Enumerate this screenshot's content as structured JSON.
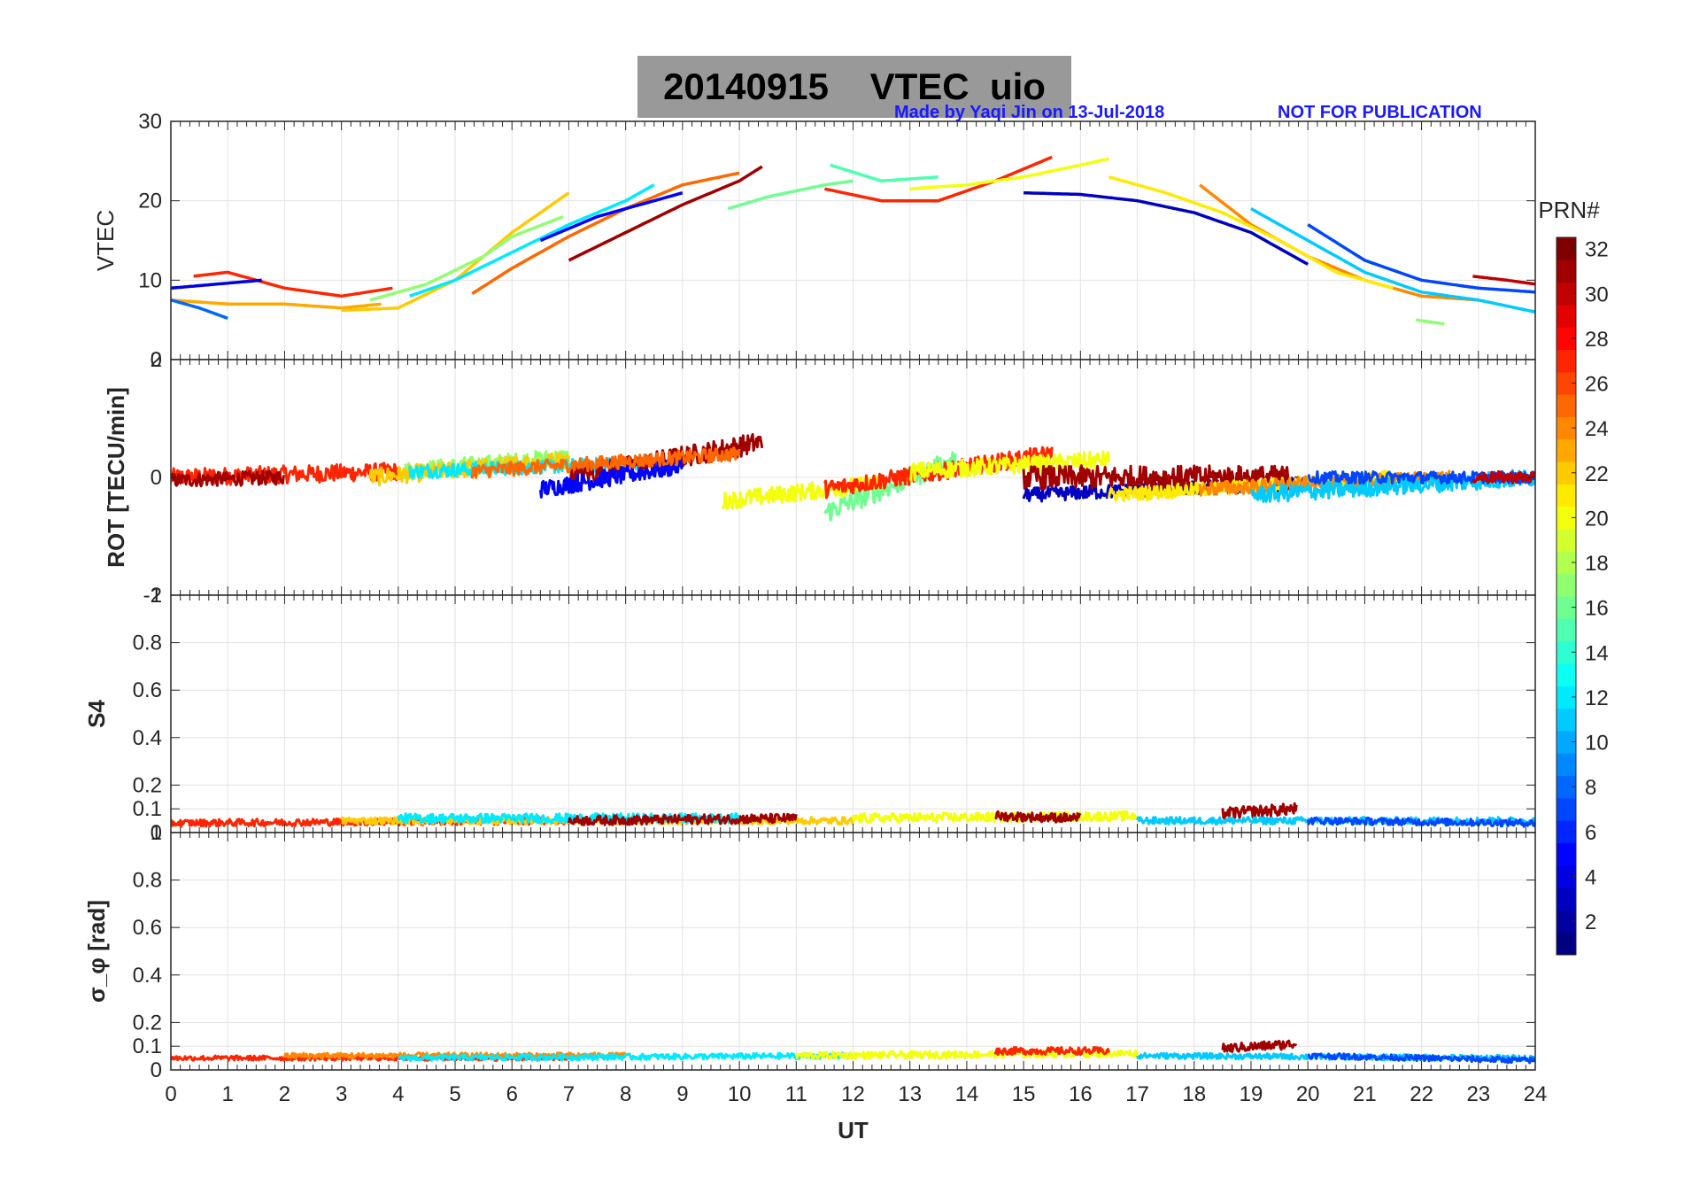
{
  "header": {
    "title": "20140915    VTEC  uio",
    "made_by": "Made by Yaqi Jin on 13-Jul-2018",
    "not_for_publication": "NOT FOR PUBLICATION"
  },
  "colorbar": {
    "label": "PRN#",
    "ticks": [
      "2",
      "4",
      "6",
      "8",
      "10",
      "12",
      "14",
      "16",
      "18",
      "20",
      "22",
      "24",
      "26",
      "28",
      "30",
      "32"
    ],
    "range": [
      1,
      32
    ],
    "colormap": "jet"
  },
  "chart_data": [
    {
      "type": "line",
      "panel": "vtec",
      "ylabel": "VTEC",
      "ylim": [
        0,
        30
      ],
      "yticks": [
        "10",
        "20",
        "30"
      ],
      "ytick_values": [
        10,
        20,
        30
      ],
      "ybottom_label": "0",
      "xlim": [
        0,
        24
      ],
      "series": [
        {
          "name": "PRN 31",
          "prn": 31,
          "x": [
            7.0,
            8.0,
            9.0,
            10.0,
            10.4
          ],
          "y": [
            12.5,
            16.0,
            19.5,
            22.5,
            24.3
          ]
        },
        {
          "name": "PRN 27",
          "prn": 27,
          "x": [
            0.4,
            1.0,
            2.0,
            3.0,
            3.9
          ],
          "y": [
            10.5,
            11.0,
            9.0,
            8.0,
            9.0
          ]
        },
        {
          "name": "PRN 27b",
          "prn": 27,
          "x": [
            11.5,
            12.5,
            13.5,
            14.5,
            15.5
          ],
          "y": [
            21.5,
            20.0,
            20.0,
            22.5,
            25.5
          ]
        },
        {
          "name": "PRN 25",
          "prn": 25,
          "x": [
            5.3,
            6.0,
            7.0,
            8.0,
            9.0,
            10.0
          ],
          "y": [
            8.3,
            11.5,
            15.5,
            19.0,
            22.0,
            23.5
          ]
        },
        {
          "name": "PRN 24",
          "prn": 24,
          "x": [
            18.1,
            19.0,
            20.0,
            21.0,
            22.0,
            23.0
          ],
          "y": [
            22.0,
            17.0,
            13.0,
            10.0,
            8.0,
            7.5
          ]
        },
        {
          "name": "PRN 23",
          "prn": 23,
          "x": [
            0.0,
            1.0,
            2.0,
            3.0,
            3.7
          ],
          "y": [
            7.5,
            7.0,
            7.0,
            6.5,
            7.0
          ]
        },
        {
          "name": "PRN 22",
          "prn": 22,
          "x": [
            3.0,
            4.0,
            5.0,
            6.0,
            7.0
          ],
          "y": [
            6.2,
            6.5,
            10.0,
            16.0,
            21.0
          ]
        },
        {
          "name": "PRN 21",
          "prn": 21,
          "x": [
            16.5,
            17.5,
            18.5,
            19.5,
            20.5,
            21.5
          ],
          "y": [
            23.0,
            21.0,
            18.5,
            15.0,
            11.0,
            9.0
          ]
        },
        {
          "name": "PRN 20",
          "prn": 20,
          "x": [
            13.0,
            14.0,
            15.0,
            16.0,
            16.5
          ],
          "y": [
            21.5,
            22.0,
            23.0,
            24.5,
            25.3
          ]
        },
        {
          "name": "PRN 17",
          "prn": 17,
          "x": [
            3.5,
            4.5,
            5.5,
            6.0,
            6.9
          ],
          "y": [
            7.5,
            9.5,
            13.0,
            15.5,
            18.0
          ]
        },
        {
          "name": "PRN 16",
          "prn": 16,
          "x": [
            9.8,
            10.5,
            11.5,
            12.0
          ],
          "y": [
            19.0,
            20.5,
            22.0,
            22.5
          ]
        },
        {
          "name": "PRN 15",
          "prn": 15,
          "x": [
            11.6,
            12.5,
            13.5
          ],
          "y": [
            24.5,
            22.5,
            23.0
          ]
        },
        {
          "name": "PRN 17b",
          "prn": 17,
          "x": [
            21.9,
            22.4
          ],
          "y": [
            5.0,
            4.5
          ]
        },
        {
          "name": "PRN 12",
          "prn": 12,
          "x": [
            4.2,
            5.0,
            6.0,
            7.0,
            8.0,
            8.5
          ],
          "y": [
            8.0,
            10.0,
            13.5,
            17.0,
            20.0,
            22.0
          ]
        },
        {
          "name": "PRN 11",
          "prn": 11,
          "x": [
            19.0,
            20.0,
            21.0,
            22.0,
            23.0,
            24.0
          ],
          "y": [
            19.0,
            15.0,
            11.0,
            8.5,
            7.5,
            6.0
          ]
        },
        {
          "name": "PRN 8",
          "prn": 8,
          "x": [
            0.0,
            0.5,
            1.0
          ],
          "y": [
            7.5,
            6.5,
            5.2
          ]
        },
        {
          "name": "PRN 7",
          "prn": 7,
          "x": [
            20.0,
            21.0,
            22.0,
            23.0,
            24.0
          ],
          "y": [
            17.0,
            12.5,
            10.0,
            9.0,
            8.5
          ]
        },
        {
          "name": "PRN 5",
          "prn": 5,
          "x": [
            6.5,
            7.5,
            8.5,
            9.0
          ],
          "y": [
            15.0,
            18.0,
            20.0,
            21.0
          ]
        },
        {
          "name": "PRN 4",
          "prn": 4,
          "x": [
            0.0,
            0.8,
            1.6
          ],
          "y": [
            9.0,
            9.5,
            10.0
          ]
        },
        {
          "name": "PRN 3",
          "prn": 3,
          "x": [
            15.0,
            16.0,
            17.0,
            18.0,
            19.0,
            20.0
          ],
          "y": [
            21.0,
            20.8,
            20.0,
            18.5,
            16.0,
            12.0
          ]
        },
        {
          "name": "PRN 30",
          "prn": 30,
          "x": [
            22.9,
            23.5,
            24.0
          ],
          "y": [
            10.5,
            10.0,
            9.5
          ]
        }
      ]
    },
    {
      "type": "line",
      "panel": "rot",
      "ylabel": "ROT [TECU/min]",
      "ylim": [
        -2,
        2
      ],
      "yticks": [
        "-2",
        "0",
        "2"
      ],
      "ytick_values": [
        -2,
        0,
        2
      ],
      "xlim": [
        0,
        24
      ],
      "series": [
        {
          "name": "PRN 27",
          "prn": 27,
          "x": [
            0.0,
            4.0
          ],
          "y": [
            0.0,
            0.1
          ],
          "noise": 0.15
        },
        {
          "name": "PRN 31",
          "prn": 31,
          "x": [
            0.0,
            2.0
          ],
          "y": [
            -0.05,
            0.0
          ],
          "noise": 0.12
        },
        {
          "name": "PRN 17",
          "prn": 17,
          "x": [
            4.0,
            7.0
          ],
          "y": [
            0.1,
            0.35
          ],
          "noise": 0.15
        },
        {
          "name": "PRN 22",
          "prn": 22,
          "x": [
            3.5,
            7.0
          ],
          "y": [
            0.0,
            0.3
          ],
          "noise": 0.15
        },
        {
          "name": "PRN 12",
          "prn": 12,
          "x": [
            4.2,
            8.5
          ],
          "y": [
            0.1,
            0.25
          ],
          "noise": 0.12
        },
        {
          "name": "PRN 31b",
          "prn": 31,
          "x": [
            7.0,
            10.4
          ],
          "y": [
            0.0,
            0.6
          ],
          "noise": 0.18
        },
        {
          "name": "PRN 5",
          "prn": 5,
          "x": [
            6.5,
            9.0
          ],
          "y": [
            -0.2,
            0.2
          ],
          "noise": 0.15
        },
        {
          "name": "PRN 25",
          "prn": 25,
          "x": [
            5.3,
            10.0
          ],
          "y": [
            0.1,
            0.4
          ],
          "noise": 0.12
        },
        {
          "name": "PRN 20",
          "prn": 20,
          "x": [
            9.7,
            12.5
          ],
          "y": [
            -0.4,
            -0.1
          ],
          "noise": 0.15
        },
        {
          "name": "PRN 16",
          "prn": 16,
          "x": [
            11.5,
            13.8
          ],
          "y": [
            -0.6,
            0.3
          ],
          "noise": 0.18
        },
        {
          "name": "PRN 27b",
          "prn": 27,
          "x": [
            11.5,
            15.5
          ],
          "y": [
            -0.2,
            0.4
          ],
          "noise": 0.15
        },
        {
          "name": "PRN 20b",
          "prn": 20,
          "x": [
            13.0,
            16.5
          ],
          "y": [
            0.1,
            0.3
          ],
          "noise": 0.15
        },
        {
          "name": "PRN 3",
          "prn": 3,
          "x": [
            15.0,
            20.0
          ],
          "y": [
            -0.3,
            -0.1
          ],
          "noise": 0.12
        },
        {
          "name": "PRN 31c",
          "prn": 31,
          "x": [
            15.0,
            19.8
          ],
          "y": [
            0.0,
            0.0
          ],
          "noise": 0.2
        },
        {
          "name": "PRN 21",
          "prn": 21,
          "x": [
            16.5,
            21.5
          ],
          "y": [
            -0.3,
            0.0
          ],
          "noise": 0.12
        },
        {
          "name": "PRN 24",
          "prn": 24,
          "x": [
            18.1,
            22.5
          ],
          "y": [
            -0.2,
            0.0
          ],
          "noise": 0.12
        },
        {
          "name": "PRN 11",
          "prn": 11,
          "x": [
            19.0,
            24.0
          ],
          "y": [
            -0.3,
            0.0
          ],
          "noise": 0.15
        },
        {
          "name": "PRN 7",
          "prn": 7,
          "x": [
            20.0,
            24.0
          ],
          "y": [
            0.0,
            0.0
          ],
          "noise": 0.1
        },
        {
          "name": "PRN 30",
          "prn": 30,
          "x": [
            22.9,
            24.0
          ],
          "y": [
            0.0,
            0.0
          ],
          "noise": 0.1
        }
      ]
    },
    {
      "type": "line",
      "panel": "s4",
      "ylabel": "S4",
      "ylim": [
        0,
        1
      ],
      "yticks": [
        "0",
        "0.1",
        "0.2",
        "0.4",
        "0.6",
        "0.8",
        "1"
      ],
      "ytick_values": [
        0,
        0.1,
        0.2,
        0.4,
        0.6,
        0.8,
        1
      ],
      "xlim": [
        0,
        24
      ],
      "series": [
        {
          "name": "PRN 27",
          "prn": 27,
          "x": [
            0.0,
            7.0
          ],
          "y": [
            0.04,
            0.05
          ],
          "noise": 0.015
        },
        {
          "name": "PRN 22",
          "prn": 22,
          "x": [
            3.0,
            12.0
          ],
          "y": [
            0.05,
            0.05
          ],
          "noise": 0.015
        },
        {
          "name": "PRN 12",
          "prn": 12,
          "x": [
            4.0,
            10.0
          ],
          "y": [
            0.06,
            0.06
          ],
          "noise": 0.02
        },
        {
          "name": "PRN 31",
          "prn": 31,
          "x": [
            7.0,
            11.0
          ],
          "y": [
            0.05,
            0.06
          ],
          "noise": 0.02
        },
        {
          "name": "PRN 20",
          "prn": 20,
          "x": [
            12.0,
            17.0
          ],
          "y": [
            0.06,
            0.07
          ],
          "noise": 0.02
        },
        {
          "name": "PRN 31b",
          "prn": 31,
          "x": [
            14.5,
            16.0
          ],
          "y": [
            0.07,
            0.06
          ],
          "noise": 0.02
        },
        {
          "name": "PRN 31c",
          "prn": 31,
          "x": [
            18.5,
            19.8
          ],
          "y": [
            0.08,
            0.1
          ],
          "noise": 0.025
        },
        {
          "name": "PRN 11",
          "prn": 11,
          "x": [
            17.0,
            24.0
          ],
          "y": [
            0.05,
            0.05
          ],
          "noise": 0.015
        },
        {
          "name": "PRN 7",
          "prn": 7,
          "x": [
            20.0,
            24.0
          ],
          "y": [
            0.05,
            0.04
          ],
          "noise": 0.015
        }
      ]
    },
    {
      "type": "line",
      "panel": "sigma_phi",
      "ylabel": "σ_φ [rad]",
      "ylim": [
        0,
        1
      ],
      "yticks": [
        "0",
        "0.1",
        "0.2",
        "0.4",
        "0.6",
        "0.8",
        "1"
      ],
      "ytick_values": [
        0,
        0.1,
        0.2,
        0.4,
        0.6,
        0.8,
        1
      ],
      "xlim": [
        0,
        24
      ],
      "series": [
        {
          "name": "PRN 27",
          "prn": 27,
          "x": [
            0.0,
            7.0
          ],
          "y": [
            0.05,
            0.05
          ],
          "noise": 0.01
        },
        {
          "name": "PRN 24",
          "prn": 24,
          "x": [
            2.0,
            8.0
          ],
          "y": [
            0.06,
            0.06
          ],
          "noise": 0.012
        },
        {
          "name": "PRN 12",
          "prn": 12,
          "x": [
            4.0,
            12.0
          ],
          "y": [
            0.05,
            0.06
          ],
          "noise": 0.012
        },
        {
          "name": "PRN 20",
          "prn": 20,
          "x": [
            11.0,
            17.0
          ],
          "y": [
            0.06,
            0.07
          ],
          "noise": 0.015
        },
        {
          "name": "PRN 27b",
          "prn": 27,
          "x": [
            14.5,
            16.5
          ],
          "y": [
            0.08,
            0.08
          ],
          "noise": 0.015
        },
        {
          "name": "PRN 31",
          "prn": 31,
          "x": [
            18.5,
            19.8
          ],
          "y": [
            0.09,
            0.11
          ],
          "noise": 0.02
        },
        {
          "name": "PRN 11",
          "prn": 11,
          "x": [
            17.0,
            24.0
          ],
          "y": [
            0.06,
            0.05
          ],
          "noise": 0.012
        },
        {
          "name": "PRN 7",
          "prn": 7,
          "x": [
            20.0,
            24.0
          ],
          "y": [
            0.06,
            0.04
          ],
          "noise": 0.012
        }
      ]
    }
  ],
  "xaxis": {
    "label": "UT",
    "ticks": [
      "0",
      "1",
      "2",
      "3",
      "4",
      "5",
      "6",
      "7",
      "8",
      "9",
      "10",
      "11",
      "12",
      "13",
      "14",
      "15",
      "16",
      "17",
      "18",
      "19",
      "20",
      "21",
      "22",
      "23",
      "24"
    ]
  }
}
